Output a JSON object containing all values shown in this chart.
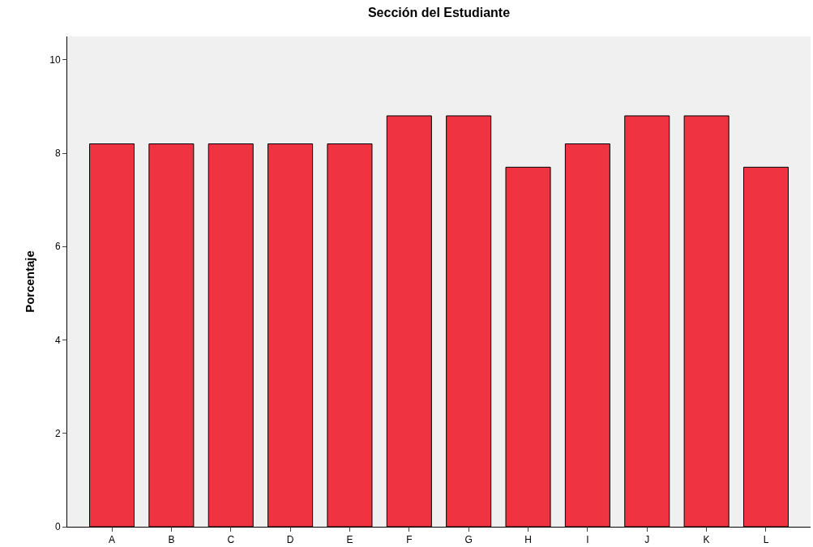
{
  "chart_data": {
    "type": "bar",
    "title": "Sección del Estudiante",
    "ylabel": "Porcentaje",
    "categories": [
      "A",
      "B",
      "C",
      "D",
      "E",
      "F",
      "G",
      "H",
      "I",
      "J",
      "K",
      "L"
    ],
    "values": [
      8.2,
      8.2,
      8.2,
      8.2,
      8.2,
      8.8,
      8.8,
      7.7,
      8.2,
      8.8,
      8.8,
      7.7
    ],
    "color": "#ef3340",
    "ylim": [
      0,
      10.5
    ],
    "yticks": [
      0,
      2,
      4,
      6,
      8,
      10
    ]
  }
}
